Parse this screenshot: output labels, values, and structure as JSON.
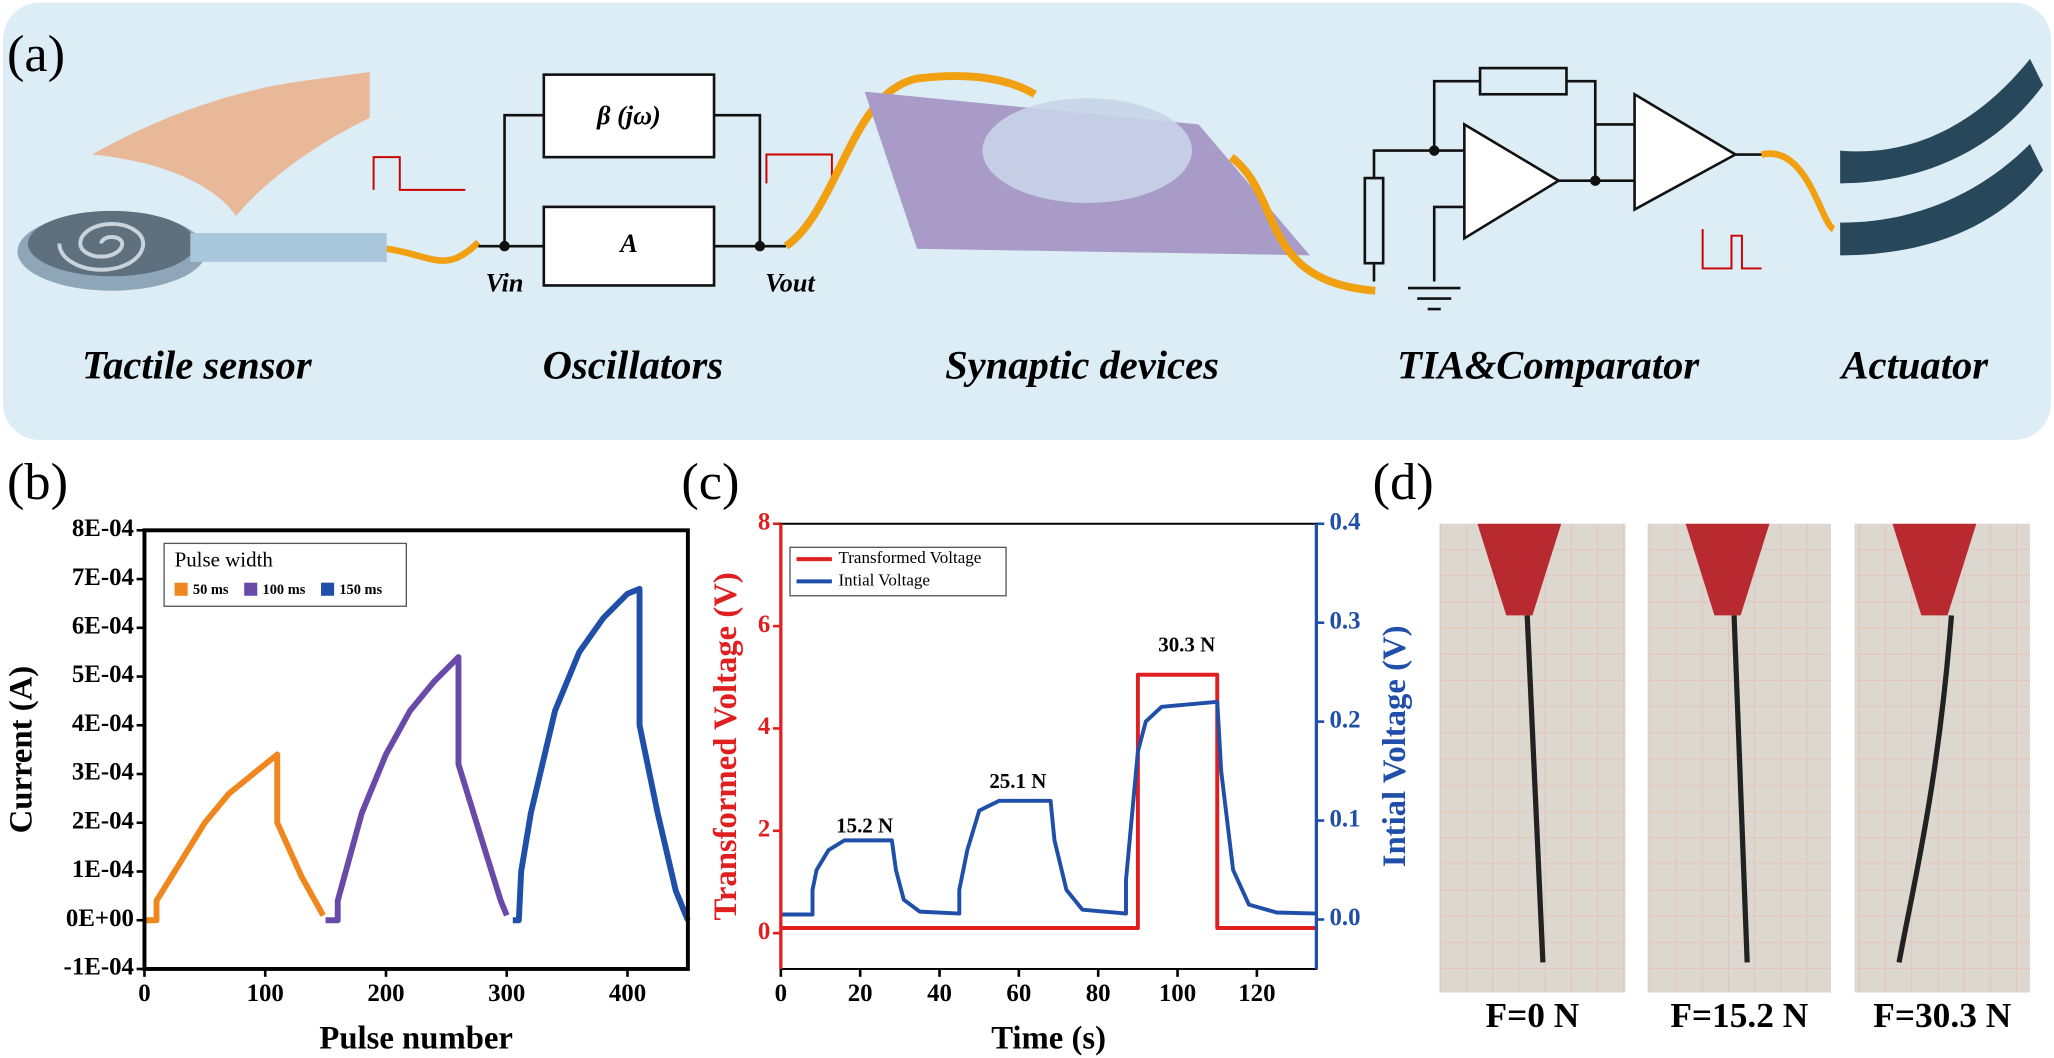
{
  "panel_a": {
    "panel_label": "(a)",
    "labels": [
      "Tactile sensor",
      "Oscillators",
      "Synaptic devices",
      "TIA&Comparator",
      "Actuator"
    ],
    "blocks": [
      "β (jω)",
      "A"
    ],
    "nodes": [
      "Vin",
      "Vout"
    ]
  },
  "chart_data": [
    {
      "type": "line",
      "panel_label": "(b)",
      "xlabel": "Pulse number",
      "ylabel": "Current (A)",
      "xlim": [
        0,
        450
      ],
      "ylim": [
        -0.0001,
        0.0008
      ],
      "xticks": [
        0,
        100,
        200,
        300,
        400
      ],
      "yticks": [
        {
          "value": -0.0001,
          "label": "-1E-04"
        },
        {
          "value": 0,
          "label": "0E+00"
        },
        {
          "value": 0.0001,
          "label": "1E-04"
        },
        {
          "value": 0.0002,
          "label": "2E-04"
        },
        {
          "value": 0.0003,
          "label": "3E-04"
        },
        {
          "value": 0.0004,
          "label": "4E-04"
        },
        {
          "value": 0.0005,
          "label": "5E-04"
        },
        {
          "value": 0.0006,
          "label": "6E-04"
        },
        {
          "value": 0.0007,
          "label": "7E-04"
        },
        {
          "value": 0.0008,
          "label": "8E-04"
        }
      ],
      "legend": "upper left",
      "legend_title": "Pulse width",
      "series": [
        {
          "name": "50 ms",
          "color": "#f0861e",
          "x": [
            0,
            10,
            10,
            30,
            50,
            70,
            90,
            110,
            110,
            130,
            148
          ],
          "values": [
            0,
            0,
            4e-05,
            0.00012,
            0.0002,
            0.00026,
            0.0003,
            0.00034,
            0.0002,
            9e-05,
            1e-05
          ]
        },
        {
          "name": "100 ms",
          "color": "#6a4aa8",
          "x": [
            150,
            160,
            160,
            180,
            200,
            220,
            240,
            260,
            260,
            280,
            295,
            300
          ],
          "values": [
            0,
            0,
            4e-05,
            0.00022,
            0.00034,
            0.00043,
            0.00049,
            0.00054,
            0.00032,
            0.00016,
            4e-05,
            1e-05
          ]
        },
        {
          "name": "150 ms",
          "color": "#1f4fa8",
          "x": [
            305,
            310,
            312,
            320,
            340,
            360,
            380,
            400,
            410,
            410,
            425,
            440,
            450
          ],
          "values": [
            0,
            0,
            0.0001,
            0.00022,
            0.00043,
            0.00055,
            0.00062,
            0.00067,
            0.00068,
            0.0004,
            0.00022,
            6e-05,
            0
          ]
        }
      ]
    },
    {
      "type": "line",
      "panel_label": "(c)",
      "xlabel": "Time (s)",
      "ylabel": "Transformed Voltage (V)",
      "y2label": "Intial Voltage (V)",
      "xlim": [
        0,
        135
      ],
      "ylim": [
        -0.7,
        8
      ],
      "y2lim": [
        -0.05,
        0.4
      ],
      "xticks": [
        0,
        20,
        40,
        60,
        80,
        100,
        120
      ],
      "yticks": [
        0,
        2,
        4,
        6,
        8
      ],
      "y2ticks": [
        {
          "value": 0,
          "label": "0.0"
        },
        0.1,
        0.2,
        0.3,
        0.4
      ],
      "legend": "upper left",
      "annotations": [
        "15.2 N",
        "25.1 N",
        "30.3 N"
      ],
      "series": [
        {
          "name": "Transformed Voltage",
          "color": "#e02020",
          "x": [
            0,
            90,
            90,
            110,
            110,
            135
          ],
          "values": [
            0.1,
            0.1,
            5.05,
            5.05,
            0.1,
            0.1
          ]
        },
        {
          "name": "Intial Voltage",
          "color": "#1f4fa8",
          "axis": "y2",
          "x": [
            0,
            8,
            8,
            9,
            12,
            16,
            28,
            29,
            31,
            35,
            45,
            45,
            47,
            50,
            55,
            68,
            69,
            72,
            76,
            87,
            87,
            90,
            92,
            96,
            110,
            111,
            114,
            118,
            125,
            135
          ],
          "values": [
            0.005,
            0.005,
            0.03,
            0.05,
            0.07,
            0.08,
            0.08,
            0.05,
            0.02,
            0.008,
            0.006,
            0.03,
            0.07,
            0.11,
            0.12,
            0.12,
            0.08,
            0.03,
            0.01,
            0.006,
            0.04,
            0.17,
            0.2,
            0.215,
            0.22,
            0.15,
            0.05,
            0.015,
            0.007,
            0.006
          ]
        }
      ]
    }
  ],
  "panel_d": {
    "panel_label": "(d)",
    "captions": [
      "F=0 N",
      "F=15.2 N",
      "F=30.3 N"
    ]
  }
}
